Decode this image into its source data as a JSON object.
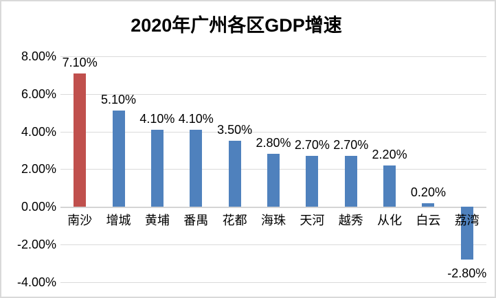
{
  "window": {
    "background_color": "#FFFFFF",
    "frame_border_color": "#D9D9D9"
  },
  "chart_data": {
    "type": "bar",
    "title": "2020年广州各区GDP增速",
    "xlabel": "",
    "ylabel": "",
    "legend": "none",
    "grid": true,
    "gridline_color": "#DADADA",
    "zero_axis_color": "#D4D4D4",
    "categories": [
      "南沙",
      "增城",
      "黄埔",
      "番禺",
      "花都",
      "海珠",
      "天河",
      "越秀",
      "从化",
      "白云",
      "荔湾"
    ],
    "values": [
      7.1,
      5.1,
      4.1,
      4.1,
      3.5,
      2.8,
      2.7,
      2.7,
      2.2,
      0.2,
      -2.8
    ],
    "data_labels": [
      "7.10%",
      "5.10%",
      "4.10%",
      "4.10%",
      "3.50%",
      "2.80%",
      "2.70%",
      "2.70%",
      "2.20%",
      "0.20%",
      "-2.80%"
    ],
    "bar_colors": [
      "#C0504D",
      "#4F81BD",
      "#4F81BD",
      "#4F81BD",
      "#4F81BD",
      "#4F81BD",
      "#4F81BD",
      "#4F81BD",
      "#4F81BD",
      "#4F81BD",
      "#4F81BD"
    ],
    "highlight_color": "#C0504D",
    "default_bar_color": "#4F81BD",
    "ylim": [
      -4,
      8
    ],
    "y_ticks": {
      "labels": [
        "8.00%",
        "6.00%",
        "4.00%",
        "2.00%",
        "0.00%",
        "-2.00%",
        "-4.00%"
      ],
      "values": [
        8,
        6,
        4,
        2,
        0,
        -2,
        -4
      ]
    }
  }
}
